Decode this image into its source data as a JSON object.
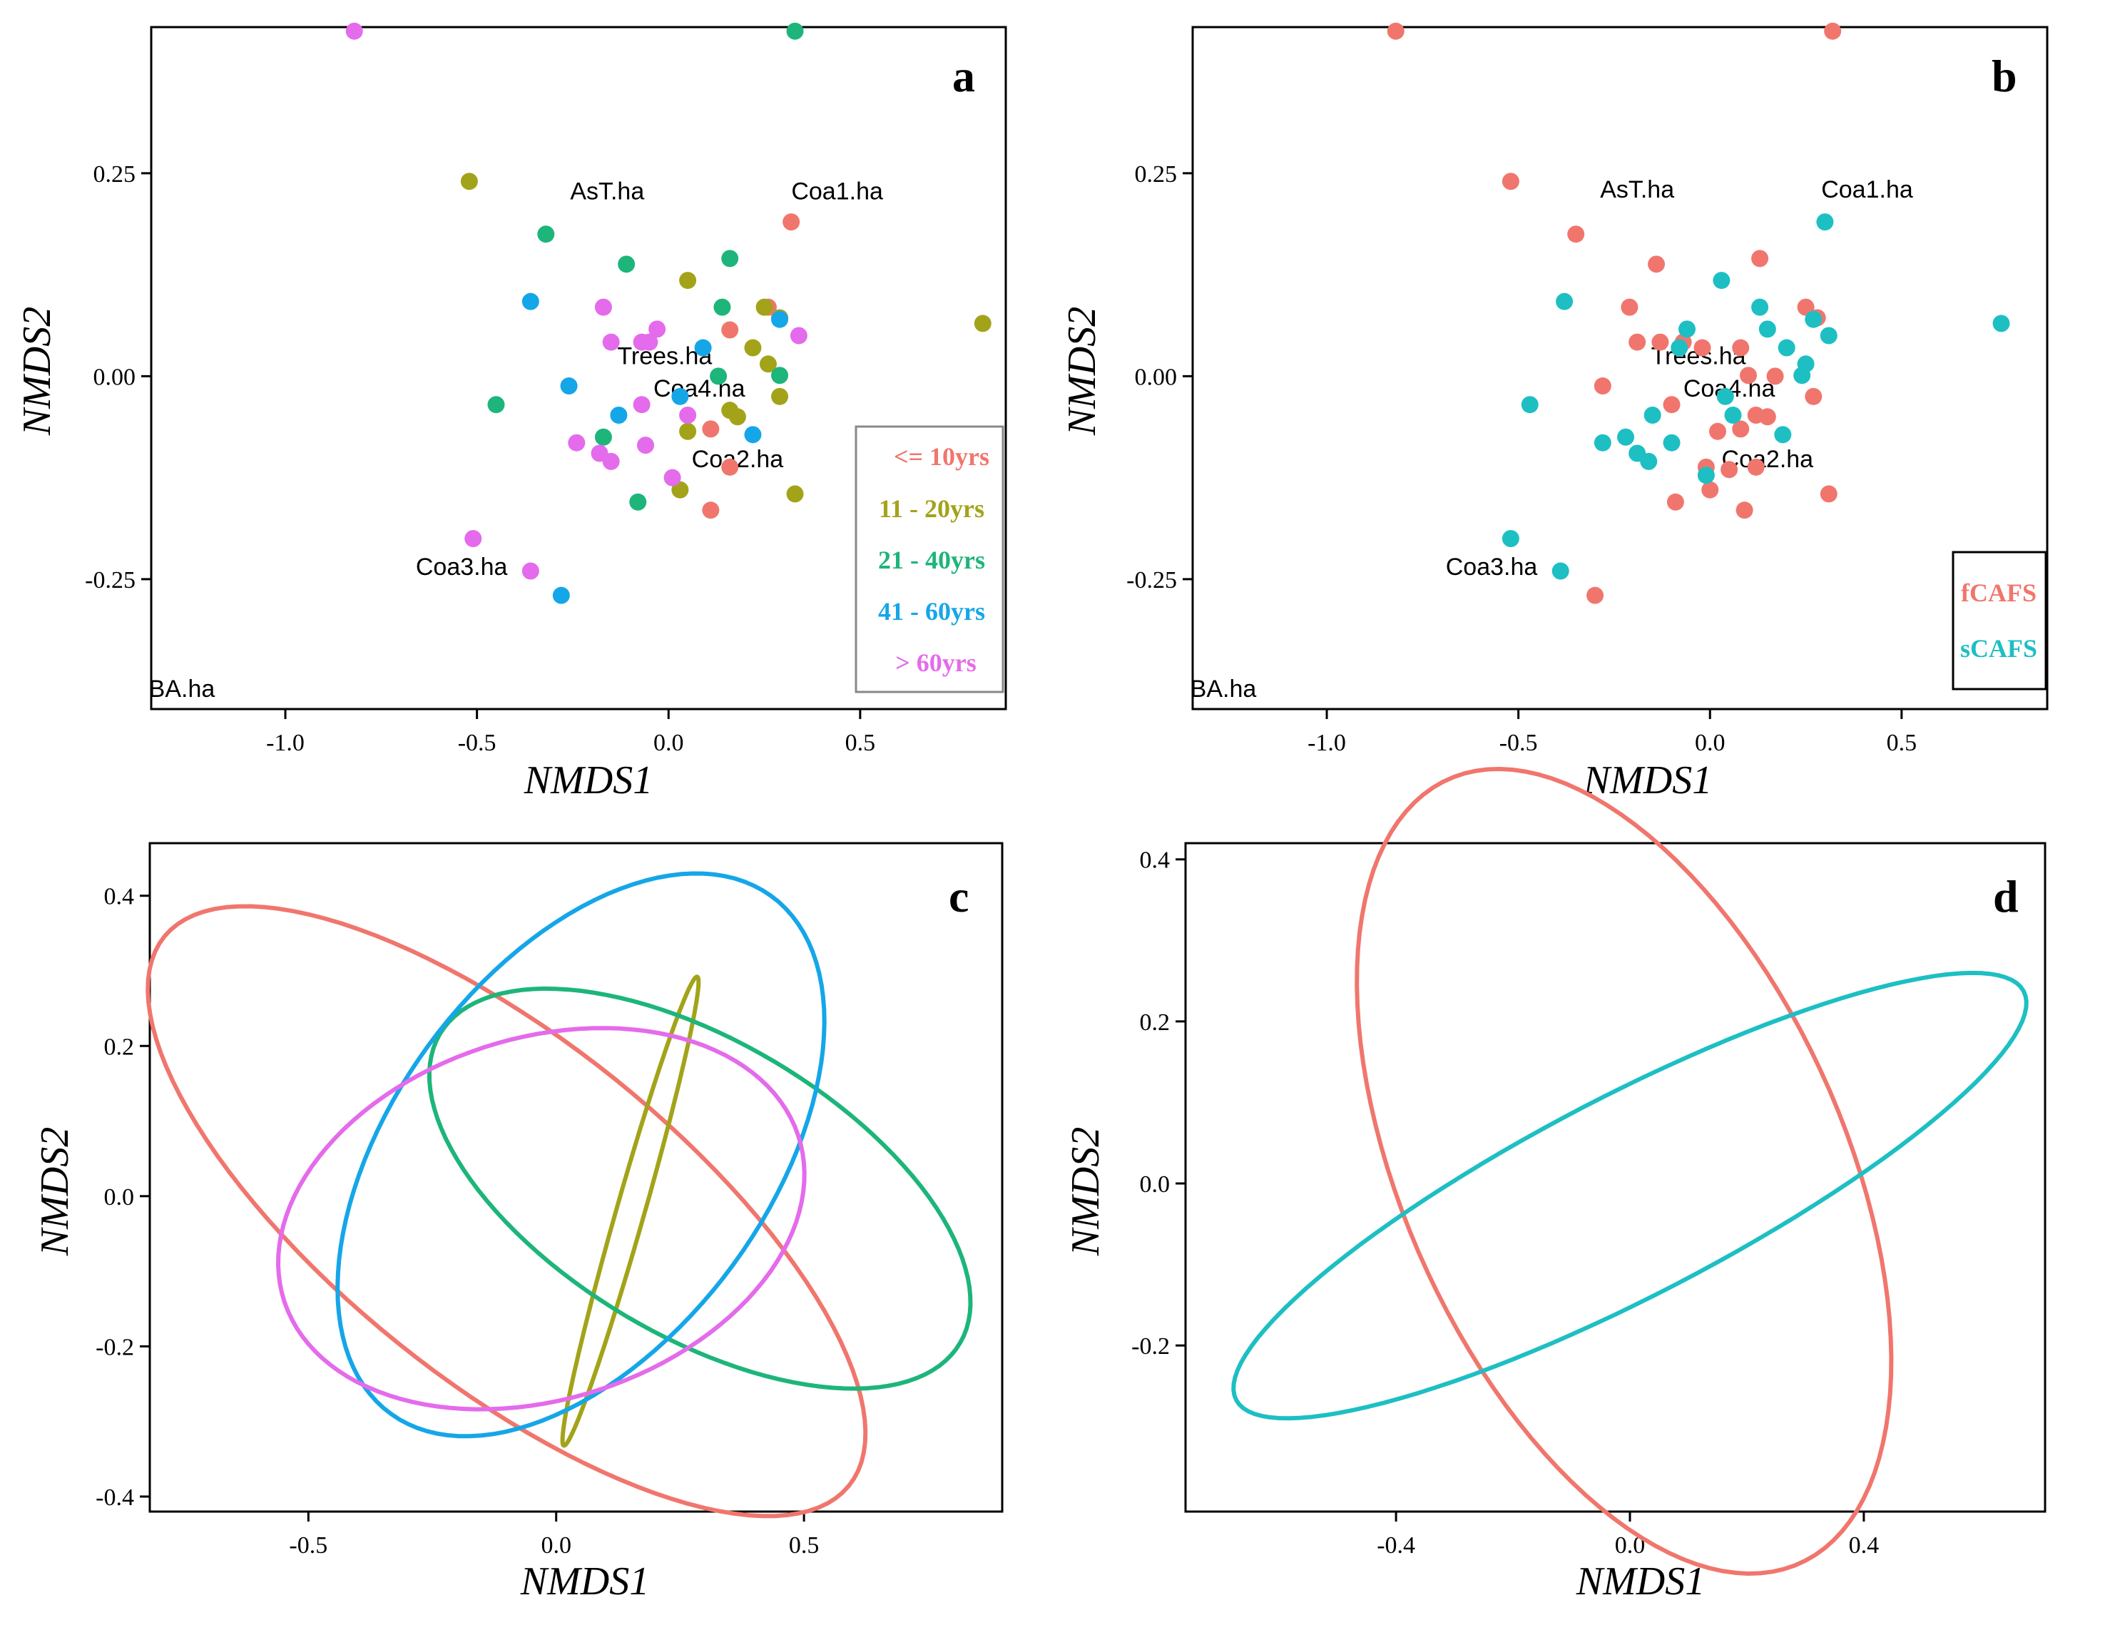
{
  "colors": {
    "age_10": "#F0766D",
    "age_20": "#A3A31A",
    "age_40": "#1DB57A",
    "age_60": "#15A6E8",
    "age_gt60": "#E46BEB",
    "fCAFS": "#F0766D",
    "sCAFS": "#1DBFC3"
  },
  "chart_data": [
    {
      "type": "scatter",
      "panel": "a",
      "xlabel": "NMDS1",
      "ylabel": "NMDS2",
      "xlim": [
        -1.35,
        0.88
      ],
      "ylim": [
        -0.41,
        0.43
      ],
      "xticks": [
        "-1.0",
        "-0.5",
        "0.0",
        "0.5"
      ],
      "xtick_values": [
        -1.0,
        -0.5,
        0.0,
        0.5
      ],
      "yticks": [
        "0.25",
        "0.00",
        "-0.25"
      ],
      "ytick_values": [
        0.25,
        0.0,
        -0.25
      ],
      "legend": {
        "placement": "bottom-right",
        "entries": [
          "<= 10yrs",
          "11 - 20yrs",
          "21 - 40yrs",
          "41 - 60yrs",
          "> 60yrs"
        ]
      },
      "vector_labels": [
        "AsT.ha",
        "Coa1.ha",
        "Trees.ha",
        "Coa4.ha",
        "Coa2.ha",
        "Coa3.ha",
        "BA.ha"
      ],
      "vector_label_positions": [
        [
          -0.16,
          0.218
        ],
        [
          0.44,
          0.218
        ],
        [
          -0.01,
          0.015
        ],
        [
          0.08,
          -0.025
        ],
        [
          0.18,
          -0.112
        ],
        [
          -0.54,
          -0.245
        ],
        [
          -1.27,
          -0.395
        ]
      ],
      "series": [
        {
          "name": "<= 10yrs",
          "points": [
            [
              0.26,
              0.085
            ],
            [
              0.16,
              0.057
            ],
            [
              0.32,
              0.19
            ],
            [
              0.11,
              -0.065
            ],
            [
              0.16,
              -0.112
            ],
            [
              0.11,
              -0.165
            ]
          ]
        },
        {
          "name": "11 - 20yrs",
          "points": [
            [
              -0.52,
              0.24
            ],
            [
              0.05,
              0.118
            ],
            [
              0.22,
              0.035
            ],
            [
              0.26,
              0.015
            ],
            [
              0.25,
              0.085
            ],
            [
              0.29,
              0.072
            ],
            [
              0.29,
              -0.025
            ],
            [
              0.05,
              -0.068
            ],
            [
              0.16,
              -0.042
            ],
            [
              0.18,
              -0.05
            ],
            [
              0.03,
              -0.14
            ],
            [
              0.33,
              -0.145
            ],
            [
              0.82,
              0.065
            ]
          ]
        },
        {
          "name": "21 - 40yrs",
          "points": [
            [
              0.33,
              0.425
            ],
            [
              -0.32,
              0.175
            ],
            [
              -0.11,
              0.138
            ],
            [
              0.14,
              0.085
            ],
            [
              0.16,
              0.145
            ],
            [
              -0.45,
              -0.035
            ],
            [
              0.13,
              0.0
            ],
            [
              -0.08,
              -0.155
            ],
            [
              -0.17,
              -0.075
            ],
            [
              0.29,
              0.001
            ]
          ]
        },
        {
          "name": "41 - 60yrs",
          "points": [
            [
              -0.36,
              0.092
            ],
            [
              -0.26,
              -0.012
            ],
            [
              -0.13,
              -0.048
            ],
            [
              0.03,
              -0.025
            ],
            [
              0.09,
              0.035
            ],
            [
              0.22,
              -0.072
            ],
            [
              0.29,
              0.07
            ],
            [
              -0.28,
              -0.27
            ]
          ]
        },
        {
          "name": "> 60yrs",
          "points": [
            [
              -0.82,
              0.425
            ],
            [
              -0.17,
              0.085
            ],
            [
              -0.15,
              0.042
            ],
            [
              -0.07,
              0.042
            ],
            [
              -0.05,
              0.042
            ],
            [
              -0.03,
              0.058
            ],
            [
              0.34,
              0.05
            ],
            [
              -0.07,
              -0.035
            ],
            [
              -0.24,
              -0.082
            ],
            [
              -0.18,
              -0.095
            ],
            [
              -0.15,
              -0.105
            ],
            [
              -0.06,
              -0.085
            ],
            [
              0.01,
              -0.125
            ],
            [
              0.05,
              -0.048
            ],
            [
              -0.51,
              -0.2
            ],
            [
              -0.36,
              -0.24
            ]
          ]
        }
      ]
    },
    {
      "type": "scatter",
      "panel": "b",
      "xlabel": "NMDS1",
      "ylabel": "NMDS2",
      "xlim": [
        -1.35,
        0.88
      ],
      "ylim": [
        -0.41,
        0.43
      ],
      "xticks": [
        "-1.0",
        "-0.5",
        "0.0",
        "0.5"
      ],
      "xtick_values": [
        -1.0,
        -0.5,
        0.0,
        0.5
      ],
      "yticks": [
        "0.25",
        "0.00",
        "-0.25"
      ],
      "ytick_values": [
        0.25,
        0.0,
        -0.25
      ],
      "legend": {
        "placement": "bottom-right",
        "entries": [
          "fCAFS",
          "sCAFS"
        ]
      },
      "vector_labels": [
        "AsT.ha",
        "Coa1.ha",
        "Trees.ha",
        "Coa4.ha",
        "Coa2.ha",
        "Coa3.ha",
        "BA.ha"
      ],
      "vector_label_positions": [
        [
          -0.19,
          0.22
        ],
        [
          0.41,
          0.22
        ],
        [
          -0.03,
          0.015
        ],
        [
          0.05,
          -0.025
        ],
        [
          0.15,
          -0.112
        ],
        [
          -0.57,
          -0.245
        ],
        [
          -1.27,
          -0.395
        ]
      ],
      "series": [
        {
          "name": "fCAFS",
          "points": [
            [
              -0.82,
              0.425
            ],
            [
              0.32,
              0.425
            ],
            [
              -0.52,
              0.24
            ],
            [
              -0.35,
              0.175
            ],
            [
              -0.14,
              0.138
            ],
            [
              0.13,
              0.145
            ],
            [
              0.25,
              0.085
            ],
            [
              0.28,
              0.072
            ],
            [
              -0.21,
              0.085
            ],
            [
              -0.19,
              0.042
            ],
            [
              -0.13,
              0.042
            ],
            [
              -0.07,
              0.042
            ],
            [
              0.08,
              0.035
            ],
            [
              -0.02,
              0.035
            ],
            [
              -0.28,
              -0.012
            ],
            [
              0.1,
              0.001
            ],
            [
              0.17,
              0.0
            ],
            [
              0.27,
              -0.025
            ],
            [
              -0.1,
              -0.035
            ],
            [
              0.12,
              -0.048
            ],
            [
              0.15,
              -0.05
            ],
            [
              0.02,
              -0.068
            ],
            [
              0.08,
              -0.065
            ],
            [
              -0.01,
              -0.112
            ],
            [
              0.12,
              -0.112
            ],
            [
              0.05,
              -0.115
            ],
            [
              -0.09,
              -0.155
            ],
            [
              0.0,
              -0.14
            ],
            [
              0.31,
              -0.145
            ],
            [
              0.09,
              -0.165
            ],
            [
              -0.3,
              -0.27
            ]
          ]
        },
        {
          "name": "sCAFS",
          "points": [
            [
              0.3,
              0.19
            ],
            [
              -0.38,
              0.092
            ],
            [
              0.03,
              0.118
            ],
            [
              0.13,
              0.085
            ],
            [
              0.15,
              0.058
            ],
            [
              -0.06,
              0.058
            ],
            [
              0.27,
              0.07
            ],
            [
              0.31,
              0.05
            ],
            [
              -0.08,
              0.035
            ],
            [
              0.2,
              0.035
            ],
            [
              0.25,
              0.015
            ],
            [
              0.24,
              0.001
            ],
            [
              0.76,
              0.065
            ],
            [
              -0.47,
              -0.035
            ],
            [
              0.04,
              -0.025
            ],
            [
              0.06,
              -0.048
            ],
            [
              -0.15,
              -0.048
            ],
            [
              0.19,
              -0.072
            ],
            [
              -0.22,
              -0.075
            ],
            [
              -0.1,
              -0.082
            ],
            [
              -0.28,
              -0.082
            ],
            [
              -0.19,
              -0.095
            ],
            [
              -0.16,
              -0.105
            ],
            [
              -0.01,
              -0.122
            ],
            [
              -0.52,
              -0.2
            ],
            [
              -0.39,
              -0.24
            ]
          ]
        }
      ]
    },
    {
      "type": "line",
      "panel": "c",
      "description_kind": "group ellipses",
      "xlabel": "NMDS1",
      "ylabel": "NMDS2",
      "xlim": [
        -0.82,
        0.9
      ],
      "ylim": [
        -0.42,
        0.47
      ],
      "xticks": [
        "-0.5",
        "0.0",
        "0.5"
      ],
      "xtick_values": [
        -0.5,
        0.0,
        0.5
      ],
      "yticks": [
        "0.4",
        "0.2",
        "0.0",
        "-0.2",
        "-0.4"
      ],
      "ytick_values": [
        0.4,
        0.2,
        0.0,
        -0.2,
        -0.4
      ],
      "series": [
        {
          "name": "<= 10yrs",
          "color_key": "age_10",
          "center": [
            -0.1,
            -0.02
          ],
          "a": 0.79,
          "b": 0.255,
          "angle_deg": -25
        },
        {
          "name": "11 - 20yrs",
          "color_key": "age_20",
          "center": [
            0.15,
            -0.02
          ],
          "a": 0.34,
          "b": 0.027,
          "angle_deg": 66.6
        },
        {
          "name": "21 - 40yrs",
          "color_key": "age_40",
          "center": [
            0.29,
            0.01
          ],
          "a": 0.57,
          "b": 0.21,
          "angle_deg": -18
        },
        {
          "name": "41 - 60yrs",
          "color_key": "age_60",
          "center": [
            0.05,
            0.055
          ],
          "a": 0.54,
          "b": 0.3,
          "angle_deg": 30
        },
        {
          "name": "> 60yrs",
          "color_key": "age_gt60",
          "center": [
            -0.03,
            -0.03
          ],
          "a": 0.535,
          "b": 0.245,
          "angle_deg": 8
        }
      ]
    },
    {
      "type": "line",
      "panel": "d",
      "description_kind": "group ellipses",
      "xlabel": "NMDS1",
      "ylabel": "NMDS2",
      "xlim": [
        -0.76,
        0.71
      ],
      "ylim": [
        -0.405,
        0.42
      ],
      "xticks": [
        "-0.4",
        "0.0",
        "0.4"
      ],
      "xtick_values": [
        -0.4,
        0.0,
        0.4
      ],
      "yticks": [
        "0.4",
        "0.2",
        "0.0",
        "-0.2"
      ],
      "ytick_values": [
        0.4,
        0.2,
        0.0,
        -0.2
      ],
      "series": [
        {
          "name": "fCAFS",
          "color_key": "fCAFS",
          "center": [
            -0.01,
            0.015
          ],
          "a": 0.58,
          "b": 0.345,
          "angle_deg": -50
        },
        {
          "name": "sCAFS",
          "color_key": "sCAFS",
          "center": [
            0.0,
            -0.015
          ],
          "a": 0.72,
          "b": 0.13,
          "angle_deg": 20
        }
      ]
    }
  ]
}
